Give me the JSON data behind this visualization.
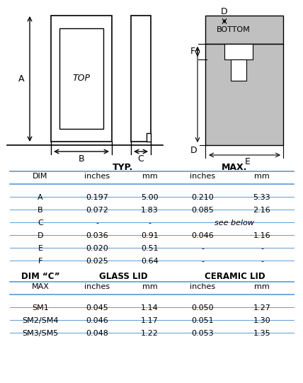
{
  "title": "",
  "bg_color": "#ffffff",
  "table1_headers": [
    "DIM",
    "inches",
    "mm",
    "inches",
    "mm"
  ],
  "table1_subheaders": [
    "TYP.",
    "MAX."
  ],
  "table1_rows": [
    [
      "A",
      "0.197",
      "5.00",
      "0.210",
      "5.33"
    ],
    [
      "B",
      "0.072",
      "1.83",
      "0.085",
      "2.16"
    ],
    [
      "C",
      "-",
      "-",
      "see below",
      ""
    ],
    [
      "D",
      "0.036",
      "0.91",
      "0.046",
      "1.16"
    ],
    [
      "E",
      "0.020",
      "0.51",
      "-",
      "-"
    ],
    [
      "F",
      "0.025",
      "0.64",
      "-",
      "-"
    ]
  ],
  "table2_headers": [
    "DIM “C”",
    "GLASS LID",
    "",
    "CERAMIC LID",
    ""
  ],
  "table2_subheaders": [
    "MAX",
    "inches",
    "mm",
    "inches",
    "mm"
  ],
  "table2_rows": [
    [
      "SM1",
      "0.045",
      "1.14",
      "0.050",
      "1.27"
    ],
    [
      "SM2/SM4",
      "0.046",
      "1.17",
      "0.051",
      "1.30"
    ],
    [
      "SM3/SM5",
      "0.048",
      "1.22",
      "0.053",
      "1.35"
    ]
  ],
  "line_color": "#5b9bd5",
  "text_color": "#000000",
  "gray_fill": "#c0c0c0"
}
